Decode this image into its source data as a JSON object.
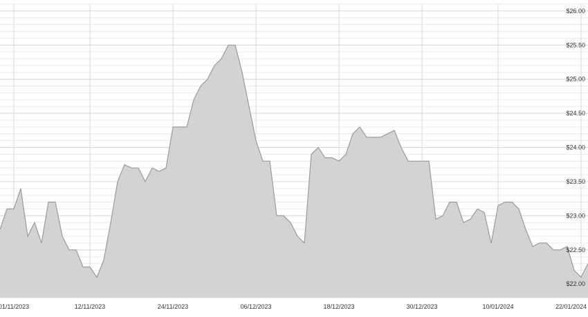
{
  "chart_data": {
    "type": "area",
    "title": "",
    "xlabel": "",
    "ylabel": "",
    "x_tick_labels": [
      "01/11/2023",
      "12/11/2023",
      "24/11/2023",
      "06/12/2023",
      "18/12/2023",
      "30/12/2023",
      "10/01/2024",
      "22/01/2024"
    ],
    "y_tick_labels": [
      "$22.00",
      "$22.50",
      "$23.00",
      "$23.50",
      "$24.00",
      "$24.50",
      "$25.00",
      "$25.50",
      "$26.00"
    ],
    "y_ticks": [
      22.0,
      22.5,
      23.0,
      23.5,
      24.0,
      24.5,
      25.0,
      25.5,
      26.0
    ],
    "ylim": [
      21.8,
      26.1
    ],
    "grid": true,
    "colors": {
      "fill": "#d3d3d3",
      "line": "#9a9a9a",
      "grid_major": "#d8d8d8",
      "grid_minor": "#ececec"
    },
    "series": [
      {
        "x": [
          "2023-10-30",
          "2023-10-31",
          "2023-11-01",
          "2023-11-02",
          "2023-11-03",
          "2023-11-04",
          "2023-11-05",
          "2023-11-06",
          "2023-11-07",
          "2023-11-08",
          "2023-11-09",
          "2023-11-10",
          "2023-11-11",
          "2023-11-12",
          "2023-11-13",
          "2023-11-14",
          "2023-11-15",
          "2023-11-16",
          "2023-11-17",
          "2023-11-18",
          "2023-11-19",
          "2023-11-20",
          "2023-11-21",
          "2023-11-22",
          "2023-11-23",
          "2023-11-24",
          "2023-11-25",
          "2023-11-26",
          "2023-11-27",
          "2023-11-28",
          "2023-11-29",
          "2023-11-30",
          "2023-12-01",
          "2023-12-02",
          "2023-12-03",
          "2023-12-04",
          "2023-12-05",
          "2023-12-06",
          "2023-12-07",
          "2023-12-08",
          "2023-12-09",
          "2023-12-10",
          "2023-12-11",
          "2023-12-12",
          "2023-12-13",
          "2023-12-14",
          "2023-12-15",
          "2023-12-16",
          "2023-12-17",
          "2023-12-18",
          "2023-12-19",
          "2023-12-20",
          "2023-12-21",
          "2023-12-22",
          "2023-12-23",
          "2023-12-24",
          "2023-12-25",
          "2023-12-26",
          "2023-12-27",
          "2023-12-28",
          "2023-12-29",
          "2023-12-30",
          "2023-12-31",
          "2024-01-01",
          "2024-01-02",
          "2024-01-03",
          "2024-01-04",
          "2024-01-05",
          "2024-01-06",
          "2024-01-07",
          "2024-01-08",
          "2024-01-09",
          "2024-01-10",
          "2024-01-11",
          "2024-01-12",
          "2024-01-13",
          "2024-01-14",
          "2024-01-15",
          "2024-01-16",
          "2024-01-17",
          "2024-01-18",
          "2024-01-19",
          "2024-01-20",
          "2024-01-21",
          "2024-01-22",
          "2024-01-23"
        ],
        "values": [
          22.8,
          23.1,
          23.1,
          23.4,
          22.7,
          22.9,
          22.6,
          23.2,
          23.2,
          22.7,
          22.5,
          22.5,
          22.25,
          22.25,
          22.1,
          22.35,
          22.9,
          23.5,
          23.75,
          23.7,
          23.7,
          23.5,
          23.7,
          23.65,
          23.7,
          24.3,
          24.3,
          24.3,
          24.7,
          24.9,
          25.0,
          25.2,
          25.3,
          25.5,
          25.5,
          25.1,
          24.6,
          24.1,
          23.8,
          23.8,
          23.0,
          23.0,
          22.9,
          22.7,
          22.6,
          23.9,
          24.0,
          23.85,
          23.85,
          23.8,
          23.9,
          24.2,
          24.3,
          24.15,
          24.15,
          24.15,
          24.2,
          24.25,
          24.0,
          23.8,
          23.8,
          23.8,
          23.8,
          22.95,
          23.0,
          23.2,
          23.2,
          22.9,
          22.95,
          23.1,
          23.05,
          22.6,
          23.15,
          23.2,
          23.2,
          23.1,
          22.8,
          22.55,
          22.6,
          22.6,
          22.5,
          22.5,
          22.55,
          22.2,
          22.1,
          22.3
        ]
      }
    ]
  }
}
